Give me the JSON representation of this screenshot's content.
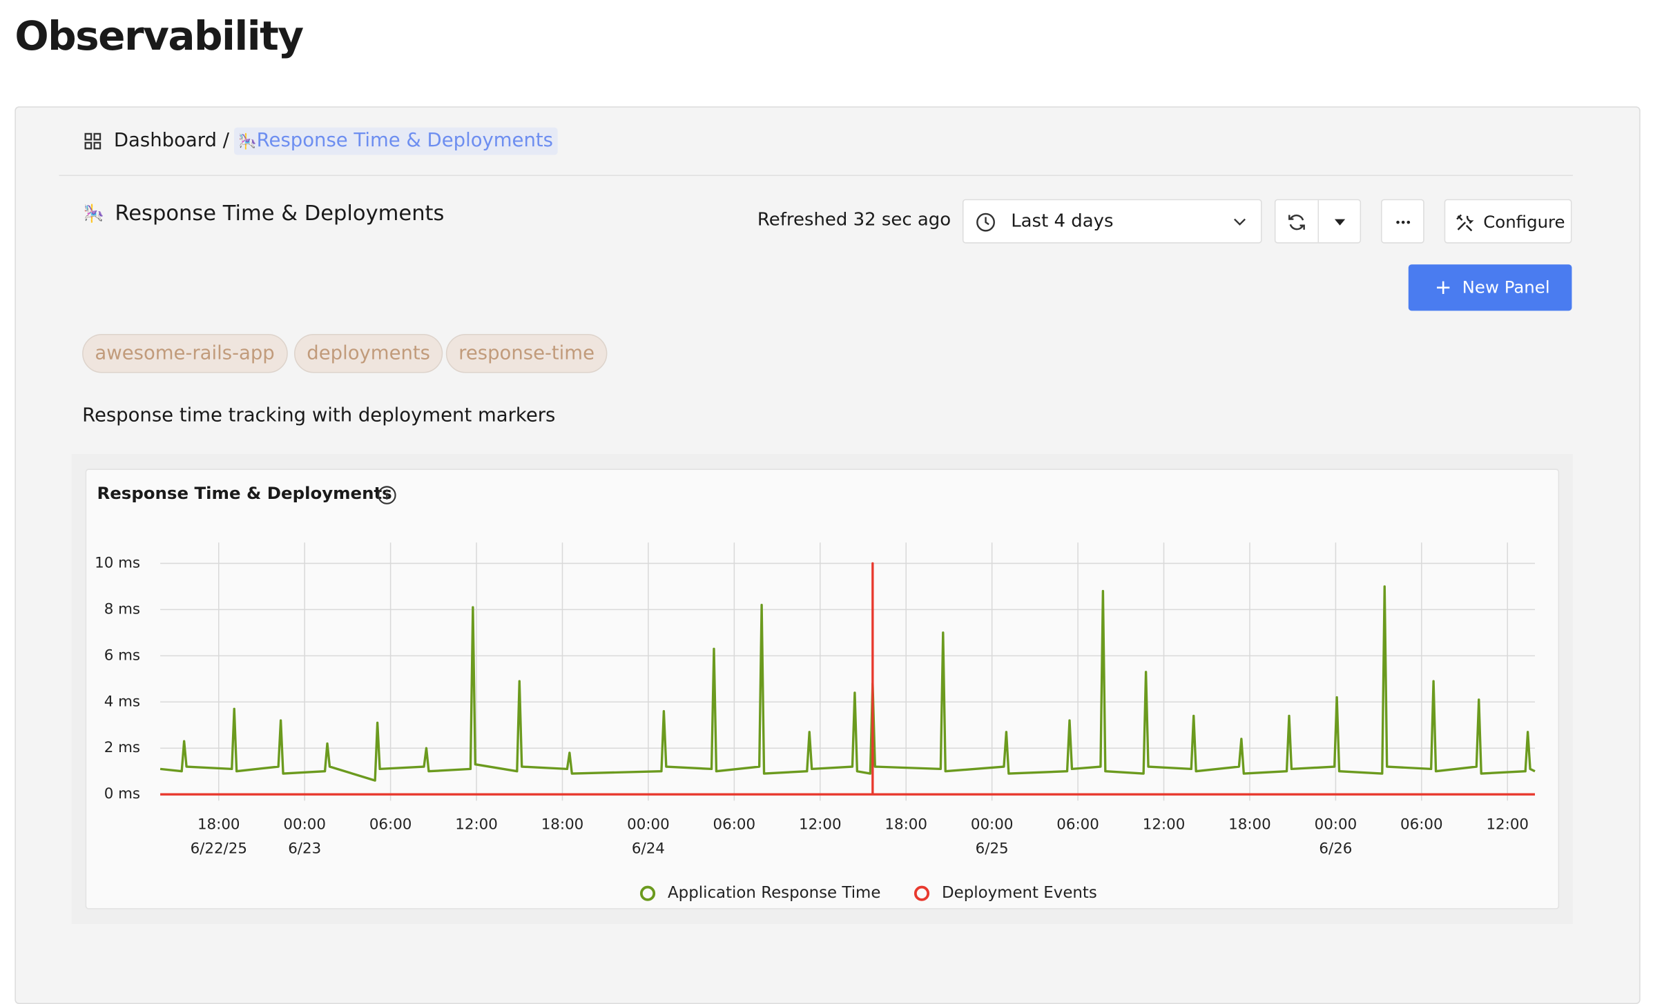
{
  "page": {
    "title": "Observability",
    "breadcrumb": {
      "root": "Dashboard /",
      "current_icon": "🎠",
      "current": "Response Time & Deployments"
    },
    "dashboard": {
      "icon": "🎠",
      "title": "Response Time & Deployments",
      "refreshed": "Refreshed 32 sec ago",
      "time_range": "Last 4 days",
      "configure": "Configure",
      "new_panel": "New Panel",
      "tags": [
        "awesome-rails-app",
        "deployments",
        "response-time"
      ],
      "description": "Response time tracking with deployment markers"
    }
  },
  "chart_data": {
    "type": "line",
    "title": "Response Time & Deployments",
    "grid": true,
    "legend": "bottom",
    "xlim": [
      "2025-06-22T13:55",
      "2025-06-26T13:55"
    ],
    "xticks": [
      {
        "value": "2025-06-22T18:00",
        "label": "18:00\n6/22/25"
      },
      {
        "value": "2025-06-23T00:00",
        "label": "00:00\n6/23"
      },
      {
        "value": "2025-06-23T06:00",
        "label": "06:00"
      },
      {
        "value": "2025-06-23T12:00",
        "label": "12:00"
      },
      {
        "value": "2025-06-23T18:00",
        "label": "18:00"
      },
      {
        "value": "2025-06-24T00:00",
        "label": "00:00\n6/24"
      },
      {
        "value": "2025-06-24T06:00",
        "label": "06:00"
      },
      {
        "value": "2025-06-24T12:00",
        "label": "12:00"
      },
      {
        "value": "2025-06-24T18:00",
        "label": "18:00"
      },
      {
        "value": "2025-06-25T00:00",
        "label": "00:00\n6/25"
      },
      {
        "value": "2025-06-25T06:00",
        "label": "06:00"
      },
      {
        "value": "2025-06-25T12:00",
        "label": "12:00"
      },
      {
        "value": "2025-06-25T18:00",
        "label": "18:00"
      },
      {
        "value": "2025-06-26T00:00",
        "label": "00:00\n6/26"
      },
      {
        "value": "2025-06-26T06:00",
        "label": "06:00"
      },
      {
        "value": "2025-06-26T12:00",
        "label": "12:00"
      }
    ],
    "ylim": [
      0,
      10.9
    ],
    "yticks": [
      {
        "value": 0,
        "label": "0 ms"
      },
      {
        "value": 2,
        "label": "2 ms"
      },
      {
        "value": 4,
        "label": "4 ms"
      },
      {
        "value": 6,
        "label": "6 ms"
      },
      {
        "value": 8,
        "label": "8 ms"
      },
      {
        "value": 10,
        "label": "10 ms"
      }
    ],
    "series": [
      {
        "name": "Application Response Time",
        "color": "#6b9a1e",
        "x": [
          "2025-06-22T13:55",
          "2025-06-22T15:25",
          "2025-06-22T15:35",
          "2025-06-22T15:45",
          "2025-06-22T18:55",
          "2025-06-22T19:05",
          "2025-06-22T19:15",
          "2025-06-22T22:10",
          "2025-06-22T22:20",
          "2025-06-22T22:30",
          "2025-06-23T01:25",
          "2025-06-23T01:35",
          "2025-06-23T01:45",
          "2025-06-23T04:55",
          "2025-06-23T05:05",
          "2025-06-23T05:15",
          "2025-06-23T08:20",
          "2025-06-23T08:30",
          "2025-06-23T08:40",
          "2025-06-23T11:35",
          "2025-06-23T11:45",
          "2025-06-23T11:55",
          "2025-06-23T14:50",
          "2025-06-23T15:00",
          "2025-06-23T15:10",
          "2025-06-23T18:20",
          "2025-06-23T18:30",
          "2025-06-23T18:40",
          "2025-06-24T00:55",
          "2025-06-24T01:05",
          "2025-06-24T01:15",
          "2025-06-24T04:25",
          "2025-06-24T04:35",
          "2025-06-24T04:45",
          "2025-06-24T07:45",
          "2025-06-24T07:55",
          "2025-06-24T08:05",
          "2025-06-24T11:05",
          "2025-06-24T11:15",
          "2025-06-24T11:25",
          "2025-06-24T14:15",
          "2025-06-24T14:25",
          "2025-06-24T14:35",
          "2025-06-24T15:30",
          "2025-06-24T15:40",
          "2025-06-24T15:50",
          "2025-06-24T20:25",
          "2025-06-24T20:35",
          "2025-06-24T20:45",
          "2025-06-25T00:50",
          "2025-06-25T01:00",
          "2025-06-25T01:10",
          "2025-06-25T05:15",
          "2025-06-25T05:25",
          "2025-06-25T05:35",
          "2025-06-25T07:35",
          "2025-06-25T07:45",
          "2025-06-25T07:55",
          "2025-06-25T10:35",
          "2025-06-25T10:45",
          "2025-06-25T10:55",
          "2025-06-25T13:55",
          "2025-06-25T14:05",
          "2025-06-25T14:15",
          "2025-06-25T17:15",
          "2025-06-25T17:25",
          "2025-06-25T17:35",
          "2025-06-25T20:35",
          "2025-06-25T20:45",
          "2025-06-25T20:55",
          "2025-06-25T23:55",
          "2025-06-26T00:05",
          "2025-06-26T00:15",
          "2025-06-26T03:15",
          "2025-06-26T03:25",
          "2025-06-26T03:35",
          "2025-06-26T06:40",
          "2025-06-26T06:50",
          "2025-06-26T07:00",
          "2025-06-26T09:50",
          "2025-06-26T10:00",
          "2025-06-26T10:10",
          "2025-06-26T13:15",
          "2025-06-26T13:25",
          "2025-06-26T13:35",
          "2025-06-26T13:55"
        ],
        "values": [
          1.1,
          1.0,
          2.3,
          1.2,
          1.1,
          3.7,
          1.0,
          1.2,
          3.2,
          0.9,
          1.0,
          2.2,
          1.2,
          0.6,
          3.1,
          1.1,
          1.2,
          2.0,
          1.0,
          1.1,
          8.1,
          1.3,
          1.0,
          4.9,
          1.2,
          1.1,
          1.8,
          0.9,
          1.0,
          3.6,
          1.2,
          1.1,
          6.3,
          1.0,
          1.2,
          8.2,
          0.9,
          1.0,
          2.7,
          1.1,
          1.2,
          4.4,
          1.0,
          0.9,
          4.8,
          1.2,
          1.1,
          7.0,
          1.0,
          1.2,
          2.7,
          0.9,
          1.0,
          3.2,
          1.1,
          1.2,
          8.8,
          1.0,
          0.9,
          5.3,
          1.2,
          1.1,
          3.4,
          1.0,
          1.2,
          2.4,
          0.9,
          1.0,
          3.4,
          1.1,
          1.2,
          4.2,
          1.0,
          0.9,
          9.0,
          1.2,
          1.1,
          4.9,
          1.0,
          1.2,
          4.1,
          0.9,
          1.0,
          2.7,
          1.1,
          1.0
        ]
      },
      {
        "name": "Deployment Events",
        "color": "#e8392e",
        "x": [
          "2025-06-22T13:55",
          "2025-06-24T15:40",
          "2025-06-24T15:40",
          "2025-06-24T15:40",
          "2025-06-26T13:55"
        ],
        "values": [
          0,
          0,
          10,
          0,
          0
        ]
      }
    ]
  }
}
